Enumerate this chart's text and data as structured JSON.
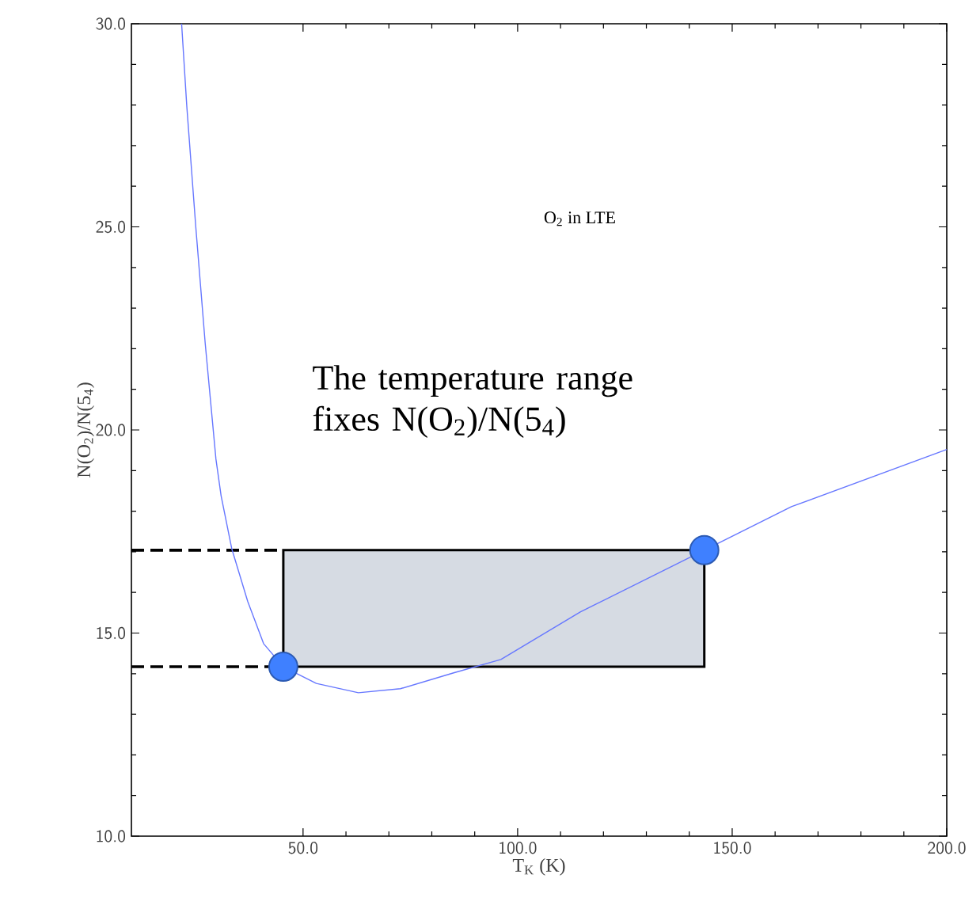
{
  "chart_data": {
    "type": "line",
    "xlabel": "T$_{K}$ (K)",
    "ylabel": "N(O$_{2}$)/N(5$_{4}$)",
    "xlim": [
      10,
      200
    ],
    "ylim": [
      10,
      30
    ],
    "xticks": [
      {
        "value": 50,
        "label": "50.0"
      },
      {
        "value": 100,
        "label": "100.0"
      },
      {
        "value": 150,
        "label": "150.0"
      },
      {
        "value": 200,
        "label": "200.0"
      }
    ],
    "yticks": [
      {
        "value": 10,
        "label": "10.0"
      },
      {
        "value": 15,
        "label": "15.0"
      },
      {
        "value": 20,
        "label": "20.0"
      },
      {
        "value": 25,
        "label": "25.0"
      },
      {
        "value": 30,
        "label": "30.0"
      }
    ],
    "series": [
      {
        "color": "#6677ff",
        "x": [
          21.7,
          22.9,
          25.0,
          27.2,
          29.7,
          30.9,
          33.4,
          37.1,
          40.8,
          45.4,
          53.1,
          62.9,
          72.7,
          85.1,
          96.1,
          114.6,
          143.5,
          163.8,
          200
        ],
        "values": [
          30,
          27.98,
          25.0,
          22.13,
          19.28,
          18.38,
          17.07,
          15.78,
          14.74,
          14.17,
          13.76,
          13.53,
          13.63,
          14.02,
          14.35,
          15.52,
          17.04,
          18.11,
          19.52
        ]
      },
      {
        "type": "scatter",
        "color": "#3f80ff",
        "marker": "circle",
        "x": [
          45.4,
          143.5
        ],
        "values": [
          14.17,
          17.04
        ]
      }
    ],
    "bands": [
      {
        "axis": "y",
        "from": 14.17,
        "to": 17.04,
        "color": "#d6dbe3"
      }
    ],
    "ref_lines": [
      {
        "axis": "y",
        "value": 14.17,
        "line_style": "dashed",
        "color": "#000000"
      },
      {
        "axis": "y",
        "value": 17.04,
        "line_style": "dashed",
        "color": "#000000"
      }
    ],
    "annotations": [
      "O$_{2}$ in LTE",
      "The temperature range fixes N(O$_{2}$)/N(5$_{4}$)"
    ]
  }
}
